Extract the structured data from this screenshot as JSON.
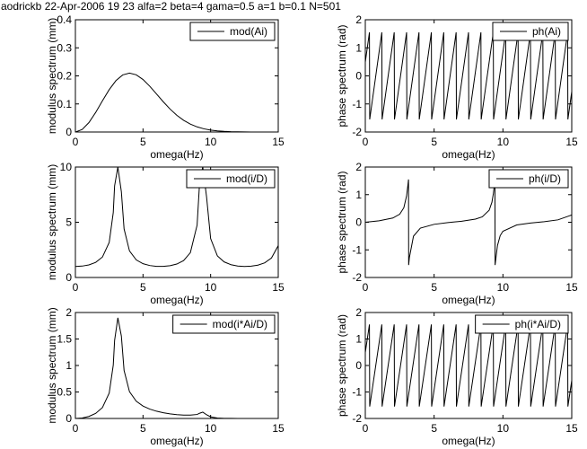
{
  "suptitle": "aodrickb 22-Apr-2006 19  23 alfa=2 beta=4 gama=0.5 a=1 b=0.1 N=501",
  "chart_data": [
    {
      "type": "line",
      "xlabel": "omega(Hz)",
      "ylabel": "modulus spectrum (mm)",
      "x": [
        0,
        0.5,
        1,
        1.5,
        2,
        2.5,
        3,
        3.5,
        4,
        4.5,
        5,
        5.5,
        6,
        6.5,
        7,
        7.5,
        8,
        8.5,
        9,
        9.5,
        10,
        10.5,
        11,
        11.5,
        12,
        12.5,
        13,
        13.5,
        14,
        14.5,
        15
      ],
      "series": [
        {
          "name": "mod(Ai)",
          "color": "#000000",
          "values": [
            0,
            0.0088,
            0.0335,
            0.0698,
            0.1112,
            0.151,
            0.1831,
            0.2034,
            0.2101,
            0.2039,
            0.1871,
            0.1631,
            0.1354,
            0.1076,
            0.0818,
            0.0597,
            0.0418,
            0.0282,
            0.0183,
            0.0114,
            0.0069,
            0.004,
            0.0022,
            0.0011,
            0.0006,
            0.0003,
            0.0001,
            0,
            0,
            0,
            0
          ]
        }
      ],
      "xlim": [
        0,
        15
      ],
      "xticks": [
        0,
        5,
        10,
        15
      ],
      "ylim": [
        0,
        0.4
      ],
      "yticks": [
        0,
        0.1,
        0.2,
        0.3,
        0.4
      ],
      "legend": "upper right",
      "grid": false
    },
    {
      "type": "line",
      "xlabel": "omega(Hz)",
      "ylabel": "phase spectrum (rad)",
      "x": [
        0,
        0.3,
        0.32,
        1.2,
        1.22,
        2.1,
        2.12,
        3.0,
        3.02,
        3.9,
        3.92,
        4.8,
        4.82,
        5.7,
        5.72,
        6.6,
        6.62,
        7.5,
        7.52,
        8.4,
        8.42,
        9.3,
        9.32,
        10.2,
        10.22,
        11.1,
        11.12,
        12.0,
        12.02,
        12.9,
        12.92,
        13.8,
        13.82,
        14.7,
        14.72,
        15
      ],
      "series": [
        {
          "name": "ph(Ai)",
          "color": "#000000",
          "values": [
            0.49,
            1.55,
            -1.55,
            1.55,
            -1.55,
            1.55,
            -1.55,
            1.55,
            -1.55,
            1.55,
            -1.55,
            1.55,
            -1.55,
            1.55,
            -1.55,
            1.55,
            -1.55,
            1.55,
            -1.55,
            1.55,
            -1.55,
            1.55,
            -1.55,
            1.55,
            -1.55,
            1.55,
            -1.55,
            1.55,
            -1.55,
            1.55,
            -1.55,
            1.55,
            -1.55,
            1.55,
            -1.55,
            -0.56
          ]
        }
      ],
      "xlim": [
        0,
        15
      ],
      "xticks": [
        0,
        5,
        10,
        15
      ],
      "ylim": [
        -2,
        2
      ],
      "yticks": [
        -2,
        -1,
        0,
        1,
        2
      ],
      "legend": "upper right",
      "grid": false
    },
    {
      "type": "line",
      "xlabel": "omega(Hz)",
      "ylabel": "modulus spectrum (mm)",
      "x": [
        0,
        0.5,
        1,
        1.5,
        2,
        2.5,
        2.8,
        2.9,
        3.14,
        3.4,
        3.6,
        4,
        4.5,
        5,
        5.5,
        6,
        6.5,
        7,
        7.5,
        8,
        8.5,
        9,
        9.2,
        9.42,
        9.7,
        10,
        10.5,
        11,
        11.5,
        12,
        12.5,
        13,
        13.5,
        14,
        14.5,
        15
      ],
      "series": [
        {
          "name": "mod(i/D)",
          "color": "#000000",
          "values": [
            1,
            1.032,
            1.139,
            1.367,
            1.851,
            3.171,
            5.88,
            8.3,
            10,
            7.76,
            4.4,
            2.403,
            1.592,
            1.248,
            1.082,
            1.01,
            1.006,
            1.068,
            1.219,
            1.53,
            2.242,
            4.74,
            8.91,
            10,
            7.29,
            3.525,
            1.953,
            1.411,
            1.161,
            1.041,
            1.0,
            1.024,
            1.12,
            1.326,
            1.764,
            2.882
          ]
        }
      ],
      "xlim": [
        0,
        15
      ],
      "xticks": [
        0,
        5,
        10,
        15
      ],
      "ylim": [
        0,
        10
      ],
      "yticks": [
        0,
        5,
        10
      ],
      "legend": "upper right",
      "grid": false
    },
    {
      "type": "line",
      "xlabel": "omega(Hz)",
      "ylabel": "phase spectrum (rad)",
      "x": [
        0,
        1,
        2,
        2.5,
        2.8,
        3,
        3.1,
        3.14,
        3.15,
        3.2,
        3.5,
        4,
        5,
        6,
        7,
        8,
        8.5,
        9,
        9.2,
        9.3,
        9.42,
        9.43,
        9.6,
        9.8,
        10,
        11,
        12,
        13,
        14,
        15
      ],
      "series": [
        {
          "name": "ph(i/D)",
          "color": "#000000",
          "values": [
            0,
            0.0545,
            0.154,
            0.292,
            0.525,
            0.954,
            1.365,
            1.55,
            -1.55,
            -1.286,
            -0.504,
            -0.214,
            -0.075,
            -0.014,
            0.037,
            0.115,
            0.197,
            0.434,
            0.725,
            1.02,
            1.55,
            -1.55,
            -0.85,
            -0.485,
            -0.326,
            -0.099,
            -0.029,
            0.022,
            0.087,
            0.264
          ]
        }
      ],
      "xlim": [
        0,
        15
      ],
      "xticks": [
        0,
        5,
        10,
        15
      ],
      "ylim": [
        -2,
        2
      ],
      "yticks": [
        -2,
        -1,
        0,
        1,
        2
      ],
      "legend": "upper right",
      "grid": false
    },
    {
      "type": "line",
      "xlabel": "omega(Hz)",
      "ylabel": "modulus spectrum (mm)",
      "x": [
        0,
        0.5,
        1,
        1.5,
        2,
        2.5,
        2.8,
        2.9,
        3.14,
        3.4,
        3.6,
        4,
        4.5,
        5,
        5.5,
        6,
        6.5,
        7,
        7.5,
        8,
        8.5,
        9,
        9.2,
        9.42,
        9.7,
        10,
        10.5,
        11,
        11.5,
        12,
        12.5,
        13,
        13.5,
        14,
        14.5,
        15
      ],
      "series": [
        {
          "name": "mod(i*Ai/D)",
          "color": "#000000",
          "values": [
            0,
            0.0091,
            0.0382,
            0.0954,
            0.2058,
            0.479,
            1.008,
            1.473,
            1.9,
            1.555,
            0.906,
            0.505,
            0.325,
            0.234,
            0.177,
            0.137,
            0.108,
            0.087,
            0.073,
            0.064,
            0.063,
            0.075,
            0.1,
            0.12,
            0.07,
            0.03,
            0.008,
            0.003,
            0.0013,
            0.0006,
            0.0003,
            0.0001,
            0,
            0,
            0,
            0
          ]
        }
      ],
      "xlim": [
        0,
        15
      ],
      "xticks": [
        0,
        5,
        10,
        15
      ],
      "ylim": [
        0,
        2
      ],
      "yticks": [
        0,
        0.5,
        1,
        1.5,
        2
      ],
      "legend": "upper right",
      "grid": false
    },
    {
      "type": "line",
      "xlabel": "omega(Hz)",
      "ylabel": "phase spectrum (rad)",
      "x": [
        0,
        0.3,
        0.32,
        1.2,
        1.22,
        2.1,
        2.12,
        3.0,
        3.02,
        3.9,
        3.92,
        4.8,
        4.82,
        5.7,
        5.72,
        6.6,
        6.62,
        7.5,
        7.52,
        8.4,
        8.42,
        9.3,
        9.32,
        10.2,
        10.22,
        11.1,
        11.12,
        12.0,
        12.02,
        12.9,
        12.92,
        13.8,
        13.82,
        14.7,
        14.72,
        15
      ],
      "series": [
        {
          "name": "ph(i*Ai/D)",
          "color": "#000000",
          "values": [
            0.49,
            1.55,
            -1.55,
            1.55,
            -1.55,
            1.55,
            -1.55,
            1.55,
            -1.55,
            1.55,
            -1.55,
            1.55,
            -1.55,
            1.55,
            -1.55,
            1.55,
            -1.55,
            1.55,
            -1.55,
            1.55,
            -1.55,
            1.55,
            -1.55,
            1.55,
            -1.55,
            1.55,
            -1.55,
            1.55,
            -1.55,
            1.55,
            -1.55,
            1.55,
            -1.55,
            1.55,
            -1.55,
            -0.56
          ]
        }
      ],
      "xlim": [
        0,
        15
      ],
      "xticks": [
        0,
        5,
        10,
        15
      ],
      "ylim": [
        -2,
        2
      ],
      "yticks": [
        -2,
        -1,
        0,
        1,
        2
      ],
      "legend": "upper right",
      "grid": false
    }
  ]
}
